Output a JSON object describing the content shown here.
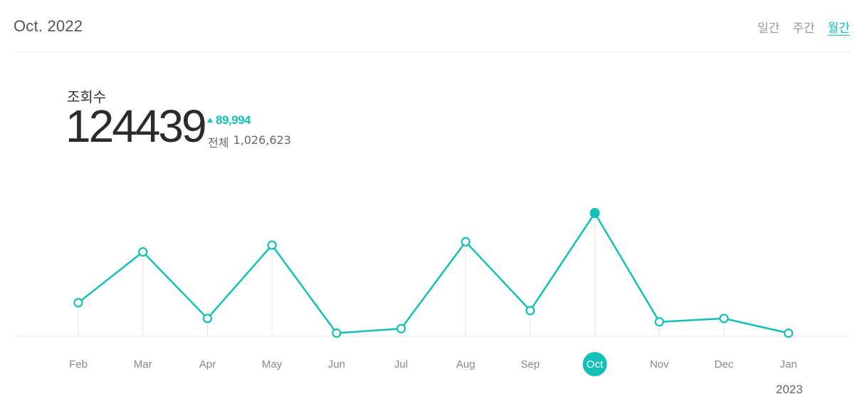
{
  "header": {
    "period_title": "Oct. 2022",
    "tabs": [
      {
        "label": "일간",
        "active": false
      },
      {
        "label": "주간",
        "active": false
      },
      {
        "label": "월간",
        "active": true
      }
    ]
  },
  "stat": {
    "label": "조회수",
    "value": "124439",
    "change": "89,994",
    "total_label": "전체",
    "total_value": "1,026,623"
  },
  "colors": {
    "accent": "#13bfb6",
    "grid": "#e6e6e6",
    "axis": "#e6e6e6"
  },
  "chart_data": {
    "type": "line",
    "categories": [
      "Feb",
      "Mar",
      "Apr",
      "May",
      "Jun",
      "Jul",
      "Aug",
      "Sep",
      "Oct",
      "Nov",
      "Dec",
      "Jan"
    ],
    "series": [
      {
        "values": [
          45000,
          90000,
          31000,
          96000,
          18000,
          22000,
          99000,
          38000,
          124439,
          28000,
          31000,
          18000
        ]
      }
    ],
    "highlighted_category": "Oct",
    "year_marker": {
      "category": "Jan",
      "label": "2023"
    },
    "grid": false,
    "legend": "none"
  }
}
